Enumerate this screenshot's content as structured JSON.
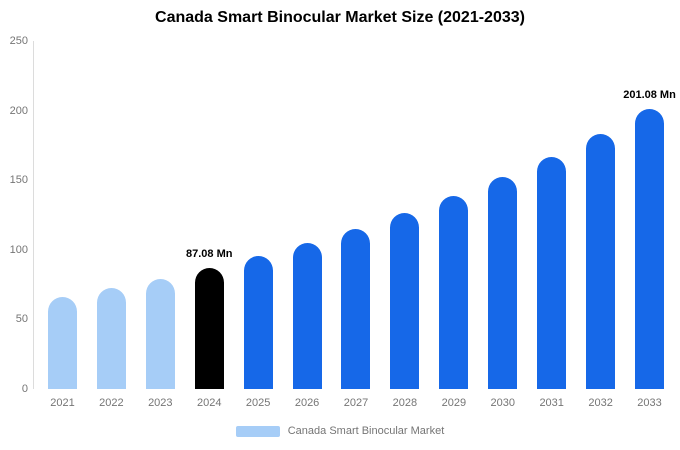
{
  "title": "Canada Smart Binocular Market Size (2021-2033)",
  "legend": {
    "label": "Canada Smart Binocular Market",
    "swatch_color": "#a6cdf7"
  },
  "colors": {
    "historical": "#a6cdf7",
    "base_year": "#000000",
    "forecast": "#1668e8",
    "axis_text": "#757575"
  },
  "chart_data": {
    "type": "bar",
    "title": "Canada Smart Binocular Market Size (2021-2033)",
    "categories": [
      "2021",
      "2022",
      "2023",
      "2024",
      "2025",
      "2026",
      "2027",
      "2028",
      "2029",
      "2030",
      "2031",
      "2032",
      "2033"
    ],
    "values": [
      66,
      72.4,
      79.3,
      87.08,
      95.6,
      104.9,
      115.1,
      126.3,
      138.6,
      152.1,
      167,
      183.2,
      201.08
    ],
    "bar_colors": [
      "#a6cdf7",
      "#a6cdf7",
      "#a6cdf7",
      "#000000",
      "#1668e8",
      "#1668e8",
      "#1668e8",
      "#1668e8",
      "#1668e8",
      "#1668e8",
      "#1668e8",
      "#1668e8",
      "#1668e8"
    ],
    "annotations": [
      {
        "category": "2024",
        "text": "87.08 Mn"
      },
      {
        "category": "2033",
        "text": "201.08 Mn"
      }
    ],
    "xlabel": "",
    "ylabel": "",
    "ylim": [
      0,
      250
    ],
    "yticks": [
      0,
      50,
      100,
      150,
      200,
      250
    ],
    "grid": false,
    "legend_position": "bottom",
    "units": "Mn"
  }
}
